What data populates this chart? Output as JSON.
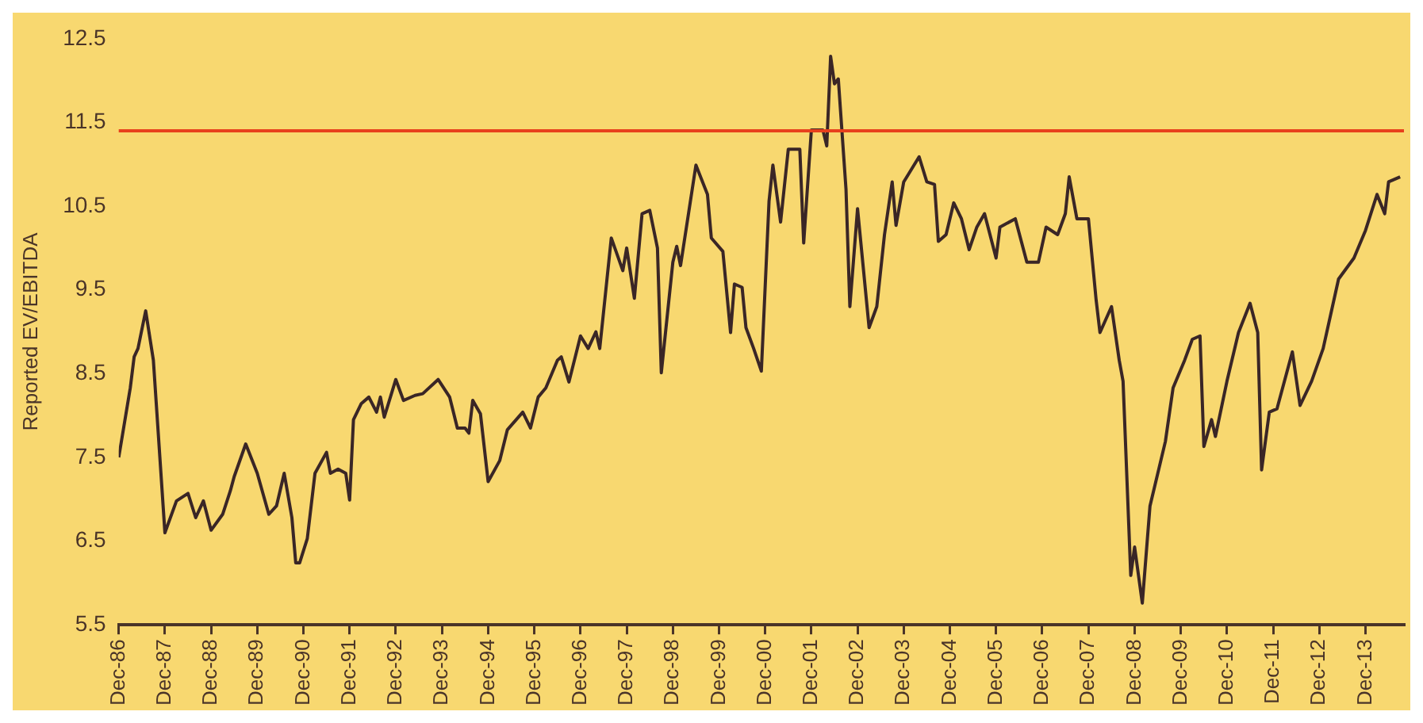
{
  "chart_data": {
    "type": "line",
    "ylabel": "Reported EV/EBITDA",
    "x": [
      "1986-12",
      "1987-03",
      "1987-04",
      "1987-05",
      "1987-07",
      "1987-09",
      "1987-12",
      "1988-03",
      "1988-06",
      "1988-08",
      "1988-10",
      "1988-12",
      "1989-03",
      "1989-05",
      "1989-06",
      "1989-09",
      "1989-12",
      "1990-03",
      "1990-05",
      "1990-07",
      "1990-09",
      "1990-10",
      "1990-11",
      "1991-01",
      "1991-03",
      "1991-06",
      "1991-07",
      "1991-09",
      "1991-11",
      "1991-12",
      "1992-01",
      "1992-03",
      "1992-05",
      "1992-07",
      "1992-08",
      "1992-09",
      "1992-12",
      "1993-02",
      "1993-05",
      "1993-07",
      "1993-11",
      "1994-02",
      "1994-04",
      "1994-06",
      "1994-07",
      "1994-08",
      "1994-10",
      "1994-12",
      "1995-03",
      "1995-05",
      "1995-09",
      "1995-11",
      "1996-01",
      "1996-03",
      "1996-06",
      "1996-07",
      "1996-09",
      "1996-12",
      "1997-02",
      "1997-04",
      "1997-05",
      "1997-08",
      "1997-11",
      "1997-12",
      "1998-02",
      "1998-04",
      "1998-06",
      "1998-08",
      "1998-09",
      "1998-12",
      "1999-01",
      "1999-02",
      "1999-06",
      "1999-09",
      "1999-10",
      "2000-01",
      "2000-03",
      "2000-04",
      "2000-06",
      "2000-07",
      "2000-09",
      "2000-11",
      "2001-01",
      "2001-02",
      "2001-04",
      "2001-06",
      "2001-09",
      "2001-10",
      "2001-12",
      "2002-03",
      "2002-04",
      "2002-05",
      "2002-06",
      "2002-07",
      "2002-09",
      "2002-10",
      "2002-12",
      "2003-03",
      "2003-05",
      "2003-07",
      "2003-09",
      "2003-10",
      "2003-12",
      "2004-04",
      "2004-06",
      "2004-08",
      "2004-09",
      "2004-11",
      "2005-01",
      "2005-03",
      "2005-05",
      "2005-07",
      "2005-09",
      "2005-12",
      "2006-01",
      "2006-05",
      "2006-08",
      "2006-11",
      "2007-01",
      "2007-04",
      "2007-06",
      "2007-07",
      "2007-09",
      "2007-12",
      "2008-02",
      "2008-03",
      "2008-06",
      "2008-08",
      "2008-09",
      "2008-11",
      "2008-12",
      "2009-02",
      "2009-04",
      "2009-08",
      "2009-10",
      "2010-01",
      "2010-03",
      "2010-05",
      "2010-06",
      "2010-08",
      "2010-09",
      "2010-12",
      "2011-03",
      "2011-06",
      "2011-08",
      "2011-09",
      "2011-11",
      "2012-01",
      "2012-05",
      "2012-07",
      "2012-10",
      "2013-01",
      "2013-05",
      "2013-09",
      "2013-12",
      "2014-03",
      "2014-05",
      "2014-06",
      "2014-09"
    ],
    "series": [
      {
        "color": "#3a2626",
        "values": [
          7.5,
          8.33,
          8.7,
          8.8,
          9.25,
          8.66,
          6.6,
          6.98,
          7.07,
          6.78,
          6.98,
          6.63,
          6.82,
          7.1,
          7.27,
          7.66,
          7.31,
          6.82,
          6.92,
          7.31,
          6.78,
          6.24,
          6.24,
          6.53,
          7.31,
          7.56,
          7.31,
          7.36,
          7.31,
          6.99,
          7.95,
          8.14,
          8.22,
          8.04,
          8.22,
          7.98,
          8.43,
          8.18,
          8.24,
          8.26,
          8.43,
          8.22,
          7.85,
          7.85,
          7.79,
          8.18,
          8.02,
          7.21,
          7.46,
          7.83,
          8.04,
          7.85,
          8.22,
          8.33,
          8.66,
          8.7,
          8.4,
          8.95,
          8.8,
          9.0,
          8.8,
          10.12,
          9.73,
          10.0,
          9.4,
          10.41,
          10.45,
          10.0,
          8.51,
          9.83,
          10.02,
          9.79,
          10.99,
          10.64,
          10.12,
          9.96,
          8.99,
          9.57,
          9.53,
          9.05,
          8.8,
          8.53,
          10.56,
          10.99,
          10.31,
          11.18,
          11.18,
          10.06,
          11.41,
          11.41,
          11.22,
          12.29,
          11.96,
          12.02,
          10.7,
          9.3,
          10.47,
          9.05,
          9.3,
          10.16,
          10.79,
          10.27,
          10.79,
          11.09,
          10.79,
          10.76,
          10.08,
          10.16,
          10.54,
          10.35,
          9.98,
          10.25,
          10.41,
          9.88,
          10.25,
          10.35,
          9.83,
          9.83,
          10.25,
          10.16,
          10.41,
          10.85,
          10.35,
          10.35,
          9.38,
          8.99,
          9.3,
          8.66,
          8.41,
          6.09,
          6.43,
          5.76,
          6.92,
          7.69,
          8.33,
          8.66,
          8.91,
          8.95,
          7.63,
          7.95,
          7.75,
          8.41,
          8.99,
          9.34,
          8.99,
          7.35,
          8.04,
          8.08,
          8.76,
          8.12,
          8.41,
          8.8,
          9.63,
          9.88,
          10.21,
          10.64,
          10.41,
          10.79,
          10.85
        ]
      }
    ],
    "xlim": [
      "1986-12",
      "2014-10"
    ],
    "xticks": [
      {
        "value": "1986-12",
        "label": "Dec-86"
      },
      {
        "value": "1987-12",
        "label": "Dec-87"
      },
      {
        "value": "1988-12",
        "label": "Dec-88"
      },
      {
        "value": "1989-12",
        "label": "Dec-89"
      },
      {
        "value": "1990-12",
        "label": "Dec-90"
      },
      {
        "value": "1991-12",
        "label": "Dec-91"
      },
      {
        "value": "1992-12",
        "label": "Dec-92"
      },
      {
        "value": "1993-12",
        "label": "Dec-93"
      },
      {
        "value": "1994-12",
        "label": "Dec-94"
      },
      {
        "value": "1995-12",
        "label": "Dec-95"
      },
      {
        "value": "1996-12",
        "label": "Dec-96"
      },
      {
        "value": "1997-12",
        "label": "Dec-97"
      },
      {
        "value": "1998-12",
        "label": "Dec-98"
      },
      {
        "value": "1999-12",
        "label": "Dec-99"
      },
      {
        "value": "2000-12",
        "label": "Dec-00"
      },
      {
        "value": "2001-12",
        "label": "Dec-01"
      },
      {
        "value": "2002-12",
        "label": "Dec-02"
      },
      {
        "value": "2003-12",
        "label": "Dec-03"
      },
      {
        "value": "2004-12",
        "label": "Dec-04"
      },
      {
        "value": "2005-12",
        "label": "Dec-05"
      },
      {
        "value": "2006-12",
        "label": "Dec-06"
      },
      {
        "value": "2007-12",
        "label": "Dec-07"
      },
      {
        "value": "2008-12",
        "label": "Dec-08"
      },
      {
        "value": "2009-12",
        "label": "Dec-09"
      },
      {
        "value": "2010-12",
        "label": "Dec-10"
      },
      {
        "value": "2011-12",
        "label": "Dec-11"
      },
      {
        "value": "2012-12",
        "label": "Dec-12"
      },
      {
        "value": "2013-12",
        "label": "Dec-13"
      }
    ],
    "ylim": [
      5.5,
      12.5
    ],
    "yticks": [
      5.5,
      6.5,
      7.5,
      8.5,
      9.5,
      10.5,
      11.5,
      12.5
    ],
    "ref_lines": [
      {
        "axis": "y",
        "value": 11.4,
        "color": "#e8401c",
        "line_style": "solid"
      }
    ],
    "grid": false,
    "legend": false,
    "marker": "none",
    "line_style": "solid"
  }
}
